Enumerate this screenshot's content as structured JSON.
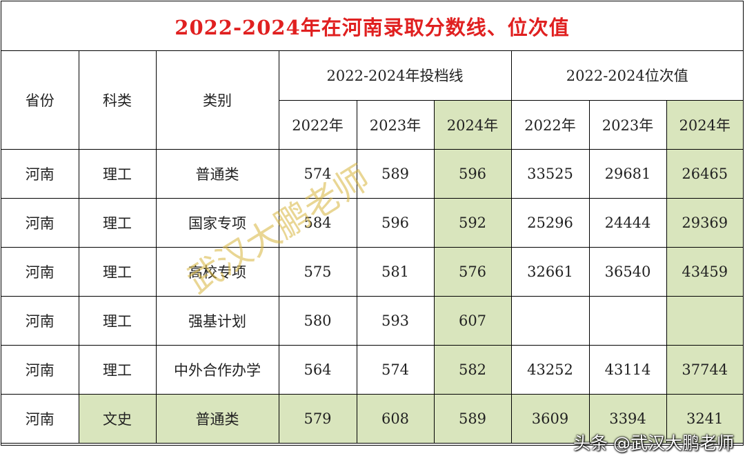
{
  "title": "2022-2024年在河南录取分数线、位次值",
  "headers": {
    "province": "省份",
    "subject": "科类",
    "category": "类别",
    "group_scores": "2022-2024年投档线",
    "group_ranks": "2022-2024位次值",
    "years": [
      "2022年",
      "2023年",
      "2024年"
    ]
  },
  "rows": [
    {
      "province": "河南",
      "subject": "理工",
      "category": "普通类",
      "s2022": "574",
      "s2023": "589",
      "s2024": "596",
      "r2022": "33525",
      "r2023": "29681",
      "r2024": "26465"
    },
    {
      "province": "河南",
      "subject": "理工",
      "category": "国家专项",
      "s2022": "584",
      "s2023": "596",
      "s2024": "592",
      "r2022": "25296",
      "r2023": "24444",
      "r2024": "29369"
    },
    {
      "province": "河南",
      "subject": "理工",
      "category": "高校专项",
      "s2022": "575",
      "s2023": "581",
      "s2024": "576",
      "r2022": "32661",
      "r2023": "36540",
      "r2024": "43459"
    },
    {
      "province": "河南",
      "subject": "理工",
      "category": "强基计划",
      "s2022": "580",
      "s2023": "593",
      "s2024": "607",
      "r2022": "",
      "r2023": "",
      "r2024": ""
    },
    {
      "province": "河南",
      "subject": "理工",
      "category": "中外合作办学",
      "s2022": "564",
      "s2023": "574",
      "s2024": "582",
      "r2022": "43252",
      "r2023": "43114",
      "r2024": "37744"
    },
    {
      "province": "河南",
      "subject": "文史",
      "category": "普通类",
      "s2022": "579",
      "s2023": "608",
      "s2024": "589",
      "r2022": "3609",
      "r2023": "3394",
      "r2024": "3241"
    }
  ],
  "watermark": "武汉大鹏老师",
  "credit": "头条 @武汉大鹏老师",
  "colors": {
    "title": "#e02020",
    "highlight": "#d9e5bd",
    "watermark": "#d7b43c"
  }
}
